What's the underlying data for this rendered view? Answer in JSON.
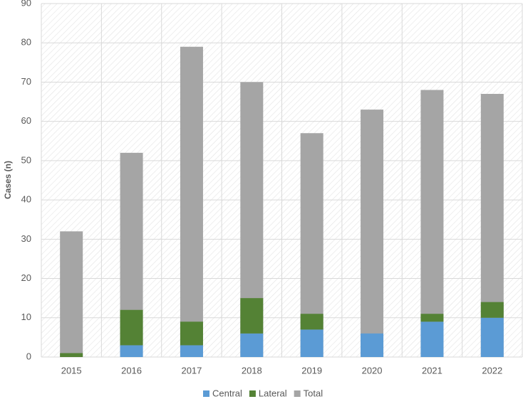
{
  "chart_data": {
    "type": "bar",
    "stacked": true,
    "categories": [
      "2015",
      "2016",
      "2017",
      "2018",
      "2019",
      "2020",
      "2021",
      "2022"
    ],
    "series": [
      {
        "name": "Central",
        "color": "#5b9bd5",
        "values": [
          0,
          3,
          3,
          6,
          7,
          6,
          9,
          10
        ]
      },
      {
        "name": "Lateral",
        "color": "#548235",
        "values": [
          1,
          9,
          6,
          9,
          4,
          0,
          2,
          4
        ]
      },
      {
        "name": "Total",
        "color": "#a5a5a5",
        "values": [
          32,
          52,
          79,
          70,
          57,
          63,
          68,
          67
        ]
      }
    ],
    "y_label": "Cases (n)",
    "ylim": [
      0,
      90
    ],
    "yticks": [
      0,
      10,
      20,
      30,
      40,
      50,
      60,
      70,
      80,
      90
    ],
    "grid": true,
    "legend": "bottom"
  }
}
